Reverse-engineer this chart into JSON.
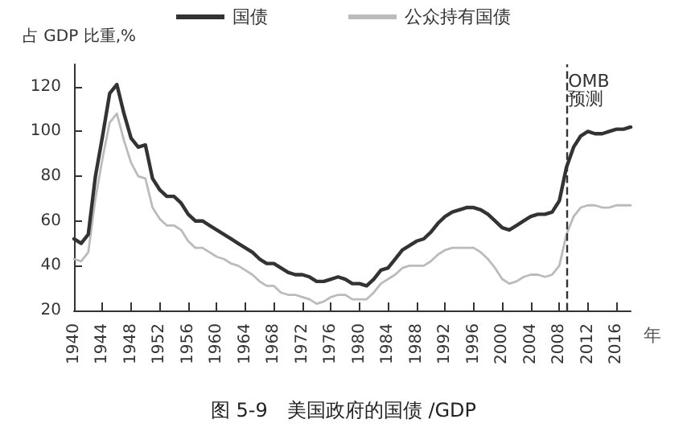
{
  "chart_data": {
    "type": "line",
    "title": "图 5-9　美国政府的国债 /GDP",
    "xlabel": "年",
    "ylabel": "占 GDP 比重,%",
    "x": [
      1940,
      1941,
      1942,
      1943,
      1944,
      1945,
      1946,
      1947,
      1948,
      1949,
      1950,
      1951,
      1952,
      1953,
      1954,
      1955,
      1956,
      1957,
      1958,
      1959,
      1960,
      1961,
      1962,
      1963,
      1964,
      1965,
      1966,
      1967,
      1968,
      1969,
      1970,
      1971,
      1972,
      1973,
      1974,
      1975,
      1976,
      1977,
      1978,
      1979,
      1980,
      1981,
      1982,
      1983,
      1984,
      1985,
      1986,
      1987,
      1988,
      1989,
      1990,
      1991,
      1992,
      1993,
      1994,
      1995,
      1996,
      1997,
      1998,
      1999,
      2000,
      2001,
      2002,
      2003,
      2004,
      2005,
      2006,
      2007,
      2008,
      2009,
      2010,
      2011,
      2012,
      2013,
      2014,
      2015,
      2016,
      2017,
      2018
    ],
    "series": [
      {
        "name": "国债",
        "color": "#333333",
        "values": [
          52,
          50,
          54,
          80,
          98,
          117,
          121,
          108,
          97,
          93,
          94,
          79,
          74,
          71,
          71,
          68,
          63,
          60,
          60,
          58,
          56,
          54,
          52,
          50,
          48,
          46,
          43,
          41,
          41,
          39,
          37,
          36,
          36,
          35,
          33,
          33,
          34,
          35,
          34,
          32,
          32,
          31,
          34,
          38,
          39,
          43,
          47,
          49,
          51,
          52,
          55,
          59,
          62,
          64,
          65,
          66,
          66,
          65,
          63,
          60,
          57,
          56,
          58,
          60,
          62,
          63,
          63,
          64,
          69,
          84,
          93,
          98,
          100,
          99,
          99,
          100,
          101,
          101,
          102
        ]
      },
      {
        "name": "公众持有国债",
        "color": "#bbbbbb",
        "values": [
          43,
          42,
          46,
          70,
          88,
          104,
          108,
          96,
          86,
          80,
          79,
          66,
          61,
          58,
          58,
          56,
          51,
          48,
          48,
          46,
          44,
          43,
          41,
          40,
          38,
          36,
          33,
          31,
          31,
          28,
          27,
          27,
          26,
          25,
          23,
          24,
          26,
          27,
          27,
          25,
          25,
          25,
          28,
          32,
          34,
          36,
          39,
          40,
          40,
          40,
          42,
          45,
          47,
          48,
          48,
          48,
          48,
          46,
          43,
          39,
          34,
          32,
          33,
          35,
          36,
          36,
          35,
          36,
          40,
          54,
          62,
          66,
          67,
          67,
          66,
          66,
          67,
          67,
          67
        ]
      }
    ],
    "xlim": [
      1940,
      2018
    ],
    "xticks": [
      1940,
      1944,
      1948,
      1952,
      1956,
      1960,
      1964,
      1968,
      1972,
      1976,
      1980,
      1984,
      1988,
      1992,
      1996,
      2000,
      2004,
      2008,
      2012,
      2016
    ],
    "ylim": [
      20,
      130
    ],
    "yticks": [
      20,
      40,
      60,
      80,
      100,
      120
    ],
    "ref_lines": [
      {
        "axis": "x",
        "value": 2009,
        "label": "OMB 预测",
        "line_style": "dashed",
        "color": "#333333"
      }
    ],
    "legend": "top",
    "grid": false,
    "marker": "none",
    "line_style": "solid"
  }
}
